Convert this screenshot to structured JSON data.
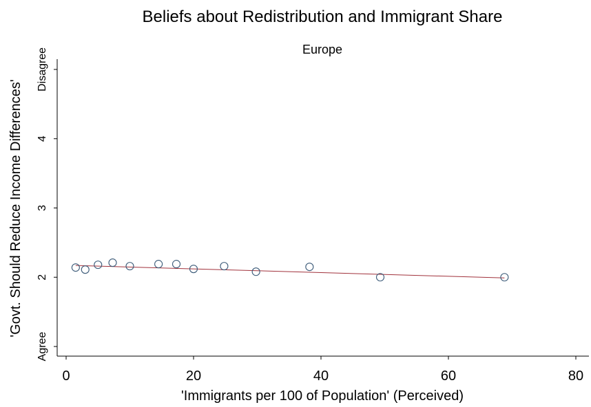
{
  "chart_data": {
    "type": "scatter",
    "title": "Beliefs about Redistribution and Immigrant Share",
    "subtitle": "Europe",
    "xlabel": "'Immigrants per 100 of Population' (Perceived)",
    "ylabel": "'Govt. Should Reduce Income Differences'",
    "xlim": [
      0,
      80
    ],
    "ylim": [
      1,
      5
    ],
    "x_ticks": [
      {
        "value": 0,
        "label": "0"
      },
      {
        "value": 20,
        "label": "20"
      },
      {
        "value": 40,
        "label": "40"
      },
      {
        "value": 60,
        "label": "60"
      },
      {
        "value": 80,
        "label": "80"
      }
    ],
    "y_ticks": [
      {
        "value": 1,
        "label": "Agree"
      },
      {
        "value": 2,
        "label": "2"
      },
      {
        "value": 3,
        "label": "3"
      },
      {
        "value": 4,
        "label": "4"
      },
      {
        "value": 5,
        "label": "Disagree"
      }
    ],
    "grid": false,
    "legend": "none",
    "series": [
      {
        "marker": "hollow-circle",
        "color": "#3b5a78",
        "points": [
          {
            "x": 1.5,
            "y": 2.14
          },
          {
            "x": 3.0,
            "y": 2.11
          },
          {
            "x": 5.0,
            "y": 2.18
          },
          {
            "x": 7.3,
            "y": 2.21
          },
          {
            "x": 10.0,
            "y": 2.16
          },
          {
            "x": 14.5,
            "y": 2.19
          },
          {
            "x": 17.3,
            "y": 2.19
          },
          {
            "x": 20.0,
            "y": 2.12
          },
          {
            "x": 24.8,
            "y": 2.16
          },
          {
            "x": 29.8,
            "y": 2.08
          },
          {
            "x": 38.2,
            "y": 2.15
          },
          {
            "x": 49.3,
            "y": 2.0
          },
          {
            "x": 68.8,
            "y": 2.0
          }
        ]
      }
    ],
    "fit_line": {
      "color": "#a0303a",
      "points": [
        {
          "x": 1.5,
          "y": 2.17
        },
        {
          "x": 68.8,
          "y": 1.99
        }
      ]
    }
  }
}
